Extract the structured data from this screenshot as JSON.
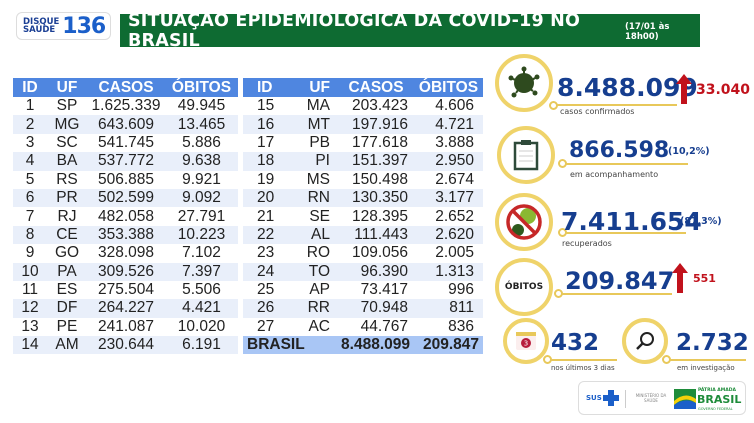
{
  "header": {
    "logo_small_1": "DISQUE",
    "logo_small_2": "SAÚDE",
    "logo_number": "136",
    "title": "SITUAÇÃO EPIDEMIOLÓGICA DA COVID-19 NO BRASIL",
    "date": "(17/01 às 18h00)"
  },
  "table": {
    "columns": [
      "ID",
      "UF",
      "CASOS",
      "ÓBITOS"
    ],
    "left_rows": [
      [
        "1",
        "SP",
        "1.625.339",
        "49.945"
      ],
      [
        "2",
        "MG",
        "643.609",
        "13.465"
      ],
      [
        "3",
        "SC",
        "541.745",
        "5.886"
      ],
      [
        "4",
        "BA",
        "537.772",
        "9.638"
      ],
      [
        "5",
        "RS",
        "506.885",
        "9.921"
      ],
      [
        "6",
        "PR",
        "502.599",
        "9.092"
      ],
      [
        "7",
        "RJ",
        "482.058",
        "27.791"
      ],
      [
        "8",
        "CE",
        "353.388",
        "10.223"
      ],
      [
        "9",
        "GO",
        "328.098",
        "7.102"
      ],
      [
        "10",
        "PA",
        "309.526",
        "7.397"
      ],
      [
        "11",
        "ES",
        "275.504",
        "5.506"
      ],
      [
        "12",
        "DF",
        "264.227",
        "4.421"
      ],
      [
        "13",
        "PE",
        "241.087",
        "10.020"
      ],
      [
        "14",
        "AM",
        "230.644",
        "6.191"
      ]
    ],
    "right_rows": [
      [
        "15",
        "MA",
        "203.423",
        "4.606"
      ],
      [
        "16",
        "MT",
        "197.916",
        "4.721"
      ],
      [
        "17",
        "PB",
        "177.618",
        "3.888"
      ],
      [
        "18",
        "PI",
        "151.397",
        "2.950"
      ],
      [
        "19",
        "MS",
        "150.498",
        "2.674"
      ],
      [
        "20",
        "RN",
        "130.350",
        "3.177"
      ],
      [
        "21",
        "SE",
        "128.395",
        "2.652"
      ],
      [
        "22",
        "AL",
        "111.443",
        "2.620"
      ],
      [
        "23",
        "RO",
        "109.056",
        "2.005"
      ],
      [
        "24",
        "TO",
        "96.390",
        "1.313"
      ],
      [
        "25",
        "AP",
        "73.417",
        "996"
      ],
      [
        "26",
        "RR",
        "70.948",
        "811"
      ],
      [
        "27",
        "AC",
        "44.767",
        "836"
      ]
    ],
    "total": {
      "label": "BRASIL",
      "casos": "8.488.099",
      "obitos": "209.847"
    }
  },
  "stats": {
    "confirmed": {
      "value": "8.488.099",
      "delta": "33.040",
      "label": "casos confirmados",
      "icon": "virus-icon"
    },
    "monitoring": {
      "value": "866.598",
      "pct": "(10,2%)",
      "label": "em acompanhamento",
      "icon": "clipboard-icon"
    },
    "recovered": {
      "value": "7.411.654",
      "pct": "(87,3%)",
      "label": "recuperados",
      "icon": "no-virus-icon"
    },
    "deaths": {
      "badge": "ÓBITOS",
      "value": "209.847",
      "delta": "551"
    },
    "last3days": {
      "value": "432",
      "label": "nos últimos 3 dias",
      "icon_num": "3",
      "icon": "calendar-icon"
    },
    "investigation": {
      "value": "2.732",
      "label": "em investigação",
      "icon": "magnifier-icon"
    }
  },
  "footer": {
    "sus": "SUS",
    "ministry": "MINISTÉRIO DA SAÚDE",
    "brand_top": "PÁTRIA AMADA",
    "brand": "BRASIL",
    "brand_sub": "GOVERNO FEDERAL"
  },
  "colors": {
    "header_green": "#0e6b32",
    "table_header": "#4f86e0",
    "accent_gold": "#efd36a",
    "number_blue": "#163e8f",
    "alert_red": "#c1121c"
  }
}
